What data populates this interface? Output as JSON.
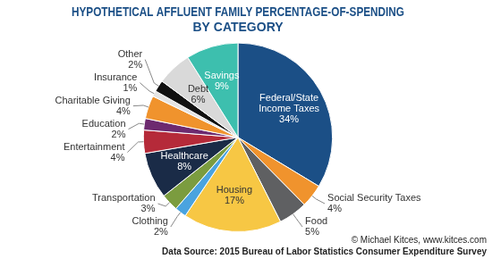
{
  "chart_data": {
    "type": "pie",
    "title": [
      "HYPOTHETICAL AFFLUENT FAMILY PERCENTAGE-OF-SPENDING",
      "BY CATEGORY"
    ],
    "categories": [
      "Federal/State Income Taxes",
      "Social Security Taxes",
      "Food",
      "Housing",
      "Clothing",
      "Transportation",
      "Healthcare",
      "Entertainment",
      "Education",
      "Charitable Giving",
      "Insurance",
      "Other",
      "Debt",
      "Savings"
    ],
    "values": [
      34,
      4,
      5,
      17,
      2,
      3,
      8,
      4,
      2,
      4,
      1,
      2,
      6,
      9
    ],
    "value_labels": [
      "34%",
      "4%",
      "5%",
      "17%",
      "2%",
      "3%",
      "8%",
      "4%",
      "2%",
      "4%",
      "1%",
      "2%",
      "6%",
      "9%"
    ],
    "colors": [
      "#1b4f86",
      "#f0932d",
      "#5f6062",
      "#f7c744",
      "#4aa3df",
      "#7b9c3f",
      "#1a2b47",
      "#b52a39",
      "#6d2a6f",
      "#f0932d",
      "#e4e4e4",
      "#111111",
      "#d9d9d9",
      "#3dbfae"
    ],
    "data_labels": true,
    "annotations": [
      "© Michael Kitces, www.kitces.com",
      "Data Source: 2015 Bureau of Labor Statistics Consumer Expenditure Survey"
    ]
  }
}
